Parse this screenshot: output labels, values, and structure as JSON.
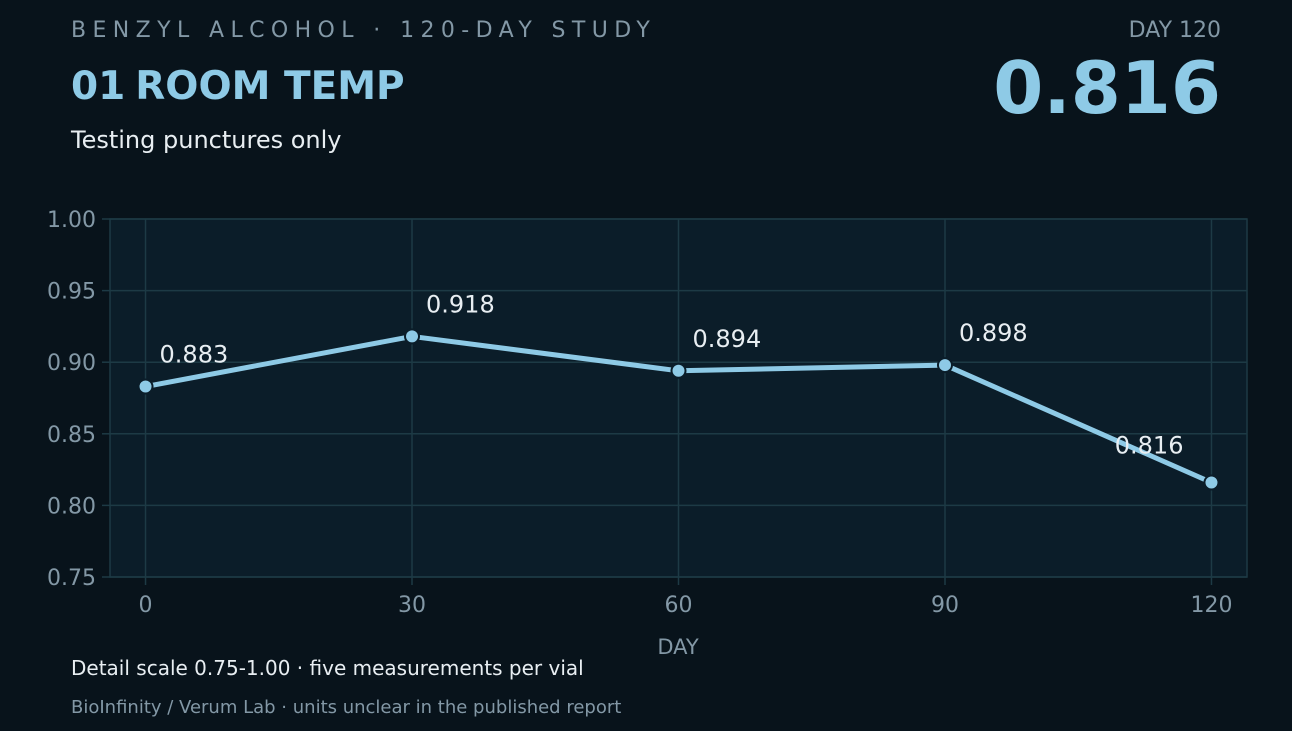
{
  "header": {
    "kicker": "BENZYL ALCOHOL · 120-DAY STUDY",
    "series_number": "01",
    "series_title": "ROOM TEMP",
    "subtitle": "Testing punctures only",
    "highlight_label": "DAY 120",
    "highlight_value": "0.816"
  },
  "chart_data": {
    "type": "line",
    "x": [
      0,
      30,
      60,
      90,
      120
    ],
    "values": [
      0.883,
      0.918,
      0.894,
      0.898,
      0.816
    ],
    "data_labels": [
      "0.883",
      "0.918",
      "0.894",
      "0.898",
      "0.816"
    ],
    "xlabel": "DAY",
    "ylabel": "",
    "xlim": [
      -4,
      124
    ],
    "ylim": [
      0.75,
      1.0
    ],
    "x_ticks": [
      0,
      30,
      60,
      90,
      120
    ],
    "x_tick_labels": [
      "0",
      "30",
      "60",
      "90",
      "120"
    ],
    "y_ticks": [
      0.75,
      0.8,
      0.85,
      0.9,
      0.95,
      1.0
    ],
    "y_tick_labels": [
      "0.75",
      "0.80",
      "0.85",
      "0.90",
      "0.95",
      "1.00"
    ],
    "grid": true,
    "legend": "none",
    "colors": {
      "line": "#8ecae6",
      "plot_bg": "#0b1d29",
      "grid": "#1d3a45",
      "tick_text": "#8398a6",
      "label_text": "#e8eef2"
    }
  },
  "footer": {
    "note": "Detail scale 0.75-1.00  ·  five measurements per vial",
    "source": "BioInfinity / Verum Lab  ·  units unclear in the published report"
  }
}
